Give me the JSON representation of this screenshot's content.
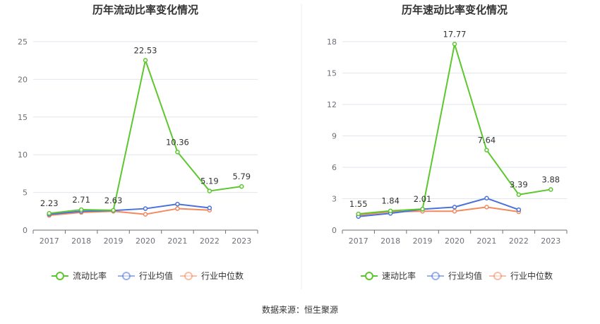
{
  "source_text": "数据来源：恒生聚源",
  "colors": {
    "company": "#5cc72e",
    "avg": "#4b72d9",
    "median": "#f4895f",
    "grid": "#e3e6ef",
    "axis": "#6e7079"
  },
  "chart_data": [
    {
      "type": "line",
      "title": "历年流动比率变化情况",
      "categories": [
        "2017",
        "2018",
        "2019",
        "2020",
        "2021",
        "2022",
        "2023"
      ],
      "ylim": [
        0,
        25
      ],
      "yticks": [
        "0",
        "5",
        "10",
        "15",
        "20",
        "25"
      ],
      "ytick_values": [
        0,
        5,
        10,
        15,
        20,
        25
      ],
      "series": [
        {
          "name": "流动比率",
          "key": "company",
          "values": [
            2.23,
            2.71,
            2.63,
            22.53,
            10.36,
            5.19,
            5.79
          ],
          "labels": [
            "2.23",
            "2.71",
            "2.63",
            "22.53",
            "10.36",
            "5.19",
            "5.79"
          ]
        },
        {
          "name": "行业均值",
          "key": "avg",
          "values": [
            2.1,
            2.5,
            2.6,
            2.85,
            3.45,
            2.95,
            null
          ]
        },
        {
          "name": "行业中位数",
          "key": "median",
          "values": [
            1.95,
            2.35,
            2.5,
            2.1,
            2.85,
            2.65,
            null
          ]
        }
      ],
      "legend": [
        "流动比率",
        "行业均值",
        "行业中位数"
      ]
    },
    {
      "type": "line",
      "title": "历年速动比率变化情况",
      "categories": [
        "2017",
        "2018",
        "2019",
        "2020",
        "2021",
        "2022",
        "2023"
      ],
      "ylim": [
        0,
        18
      ],
      "yticks": [
        "0",
        "3",
        "6",
        "9",
        "12",
        "15",
        "18"
      ],
      "ytick_values": [
        0,
        3,
        6,
        9,
        12,
        15,
        18
      ],
      "series": [
        {
          "name": "速动比率",
          "key": "company",
          "values": [
            1.55,
            1.84,
            2.01,
            17.77,
            7.64,
            3.39,
            3.88
          ],
          "labels": [
            "1.55",
            "1.84",
            "2.01",
            "17.77",
            "7.64",
            "3.39",
            "3.88"
          ]
        },
        {
          "name": "行业均值",
          "key": "avg",
          "values": [
            1.3,
            1.6,
            2.0,
            2.2,
            3.05,
            1.95,
            null
          ]
        },
        {
          "name": "行业中位数",
          "key": "median",
          "values": [
            1.45,
            1.75,
            1.8,
            1.8,
            2.2,
            1.75,
            null
          ]
        }
      ],
      "legend": [
        "速动比率",
        "行业均值",
        "行业中位数"
      ]
    }
  ]
}
